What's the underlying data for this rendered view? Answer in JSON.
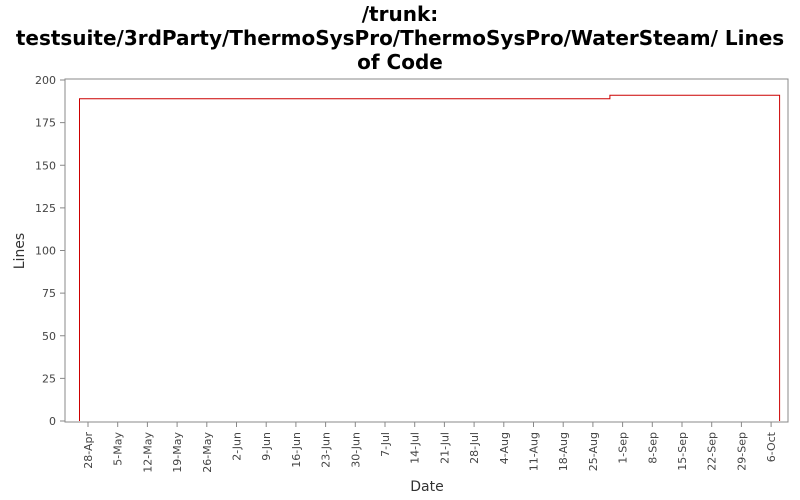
{
  "title_lines": [
    "/trunk:",
    "testsuite/3rdParty/ThermoSysPro/ThermoSysPro/WaterSteam/ Lines",
    "of Code"
  ],
  "chart_data": {
    "type": "line",
    "title": "/trunk: testsuite/3rdParty/ThermoSysPro/ThermoSysPro/WaterSteam/ Lines of Code",
    "xlabel": "Date",
    "ylabel": "Lines",
    "ylim": [
      0,
      200
    ],
    "y_ticks": [
      0,
      25,
      50,
      75,
      100,
      125,
      150,
      175,
      200
    ],
    "x_ticks": [
      "28-Apr",
      "5-May",
      "12-May",
      "19-May",
      "26-May",
      "2-Jun",
      "9-Jun",
      "16-Jun",
      "23-Jun",
      "30-Jun",
      "7-Jul",
      "14-Jul",
      "21-Jul",
      "28-Jul",
      "4-Aug",
      "11-Aug",
      "18-Aug",
      "25-Aug",
      "1-Sep",
      "8-Sep",
      "15-Sep",
      "22-Sep",
      "29-Sep",
      "6-Oct"
    ],
    "grid": false,
    "step": true,
    "series_color": "#cc0000",
    "series": [
      {
        "points": [
          {
            "x": "26-Apr",
            "y": 0
          },
          {
            "x": "26-Apr",
            "y": 189
          },
          {
            "x": "29-Aug",
            "y": 189
          },
          {
            "x": "29-Aug",
            "y": 191
          },
          {
            "x": "8-Oct",
            "y": 191
          },
          {
            "x": "8-Oct",
            "y": 0
          }
        ]
      }
    ]
  }
}
